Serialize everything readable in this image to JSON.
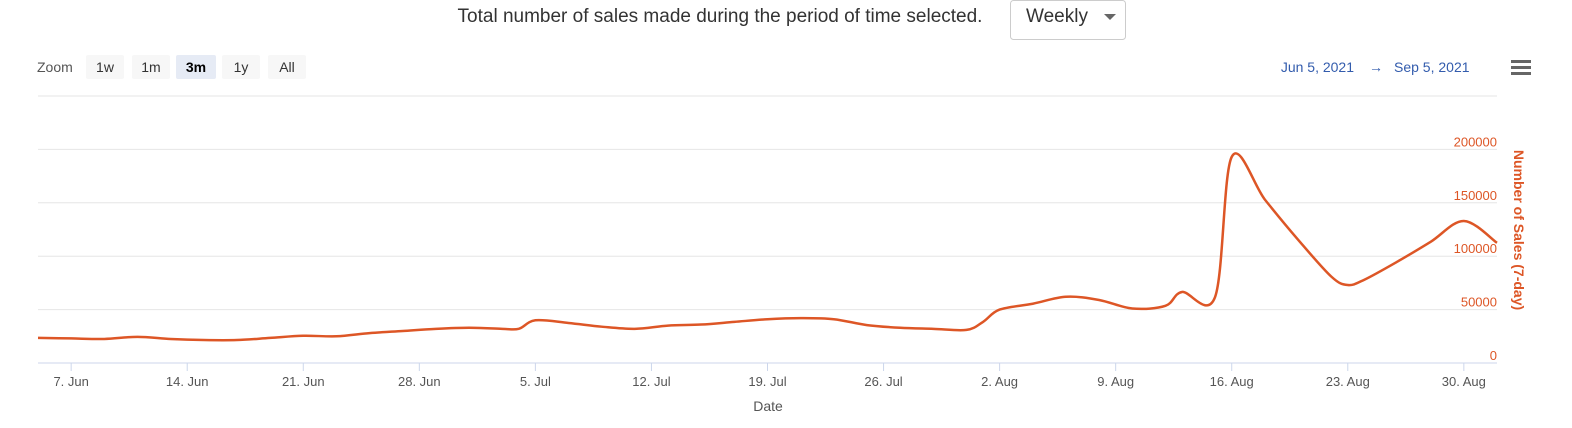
{
  "header": {
    "title": "Total number of sales made during the period of time selected.",
    "period": "Weekly"
  },
  "zoom": {
    "label": "Zoom",
    "buttons": [
      "1w",
      "1m",
      "3m",
      "1y",
      "All"
    ],
    "selected": "3m"
  },
  "range": {
    "from": "Jun 5, 2021",
    "arrow": "→",
    "to": "Sep 5, 2021"
  },
  "chart_data": {
    "type": "line",
    "x_label": "Date",
    "y_label": "Number of Sales (7-day)",
    "xlim": [
      "2021-06-05",
      "2021-09-01"
    ],
    "xticks": [
      {
        "value": "2021-06-07",
        "label": "7. Jun"
      },
      {
        "value": "2021-06-14",
        "label": "14. Jun"
      },
      {
        "value": "2021-06-21",
        "label": "21. Jun"
      },
      {
        "value": "2021-06-28",
        "label": "28. Jun"
      },
      {
        "value": "2021-07-05",
        "label": "5. Jul"
      },
      {
        "value": "2021-07-12",
        "label": "12. Jul"
      },
      {
        "value": "2021-07-19",
        "label": "19. Jul"
      },
      {
        "value": "2021-07-26",
        "label": "26. Jul"
      },
      {
        "value": "2021-08-02",
        "label": "2. Aug"
      },
      {
        "value": "2021-08-09",
        "label": "9. Aug"
      },
      {
        "value": "2021-08-16",
        "label": "16. Aug"
      },
      {
        "value": "2021-08-23",
        "label": "23. Aug"
      },
      {
        "value": "2021-08-30",
        "label": "30. Aug"
      }
    ],
    "ylim": [
      0,
      250000
    ],
    "yticks": [
      0,
      50000,
      100000,
      150000,
      200000
    ],
    "grid": true,
    "x": [
      "2021-06-05",
      "2021-06-07",
      "2021-06-09",
      "2021-06-11",
      "2021-06-13",
      "2021-06-15",
      "2021-06-17",
      "2021-06-19",
      "2021-06-21",
      "2021-06-23",
      "2021-06-25",
      "2021-06-27",
      "2021-06-29",
      "2021-07-01",
      "2021-07-03",
      "2021-07-04",
      "2021-07-05",
      "2021-07-07",
      "2021-07-09",
      "2021-07-11",
      "2021-07-13",
      "2021-07-15",
      "2021-07-17",
      "2021-07-19",
      "2021-07-21",
      "2021-07-23",
      "2021-07-25",
      "2021-07-27",
      "2021-07-29",
      "2021-07-31",
      "2021-08-01",
      "2021-08-02",
      "2021-08-04",
      "2021-08-06",
      "2021-08-08",
      "2021-08-10",
      "2021-08-12",
      "2021-08-13",
      "2021-08-15",
      "2021-08-16",
      "2021-08-18",
      "2021-08-20",
      "2021-08-22",
      "2021-08-23",
      "2021-08-24",
      "2021-08-26",
      "2021-08-28",
      "2021-08-30",
      "2021-09-01"
    ],
    "series": [
      {
        "name": "Number of Sales (7-day)",
        "color": "#dd5626",
        "values": [
          23500,
          23000,
          22500,
          24500,
          22500,
          21500,
          21500,
          23500,
          25500,
          25000,
          28000,
          30000,
          32000,
          33000,
          32000,
          32000,
          40000,
          37500,
          34000,
          32000,
          35000,
          36000,
          38500,
          41000,
          42000,
          41000,
          35500,
          33000,
          32000,
          31000,
          38500,
          50000,
          55500,
          62000,
          59000,
          51000,
          53500,
          66500,
          62000,
          193000,
          153000,
          115500,
          81000,
          73000,
          78000,
          95000,
          113500,
          133000,
          112500
        ]
      }
    ]
  }
}
